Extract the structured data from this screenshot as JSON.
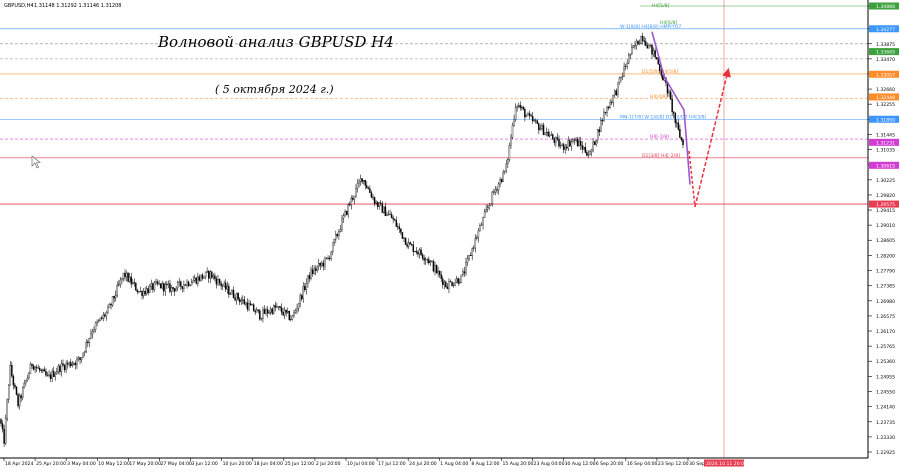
{
  "header": {
    "symbol": "GBPUSD,H4",
    "ohlc": "1.31148 1.31292 1.31146 1.31208"
  },
  "annotation": {
    "title": "Волновой анализ GBPUSD H4",
    "date": "( 5 октября 2024 г.)"
  },
  "colors": {
    "background": "#ffffff",
    "candles": "#000000",
    "grid": "#e6e6e6",
    "vline_red": "#f08080",
    "forecast": "#e8323c",
    "wave_purple": "#9b59d0",
    "murrey_blue": "#3c96ff",
    "murrey_orange": "#ff8c28",
    "murrey_red": "#e83c50",
    "murrey_magenta": "#d23cd2",
    "murrey_green": "#3ca03c",
    "murrey_gray": "#8c8c8c"
  },
  "chart_data": {
    "type": "candlestick",
    "symbol": "GBPUSD",
    "timeframe": "H4",
    "ylim": [
      1.22925,
      1.34888
    ],
    "y_ticks": [
      "1.34888",
      "1.34277",
      "1.33875",
      "1.33470",
      "1.33065",
      "1.32660",
      "1.32255",
      "1.31850",
      "1.31445",
      "1.31035",
      "1.30630",
      "1.30225",
      "1.29820",
      "1.29415",
      "1.29010",
      "1.28605",
      "1.28200",
      "1.27790",
      "1.27385",
      "1.26980",
      "1.26575",
      "1.26170",
      "1.25765",
      "1.25360",
      "1.24955",
      "1.24550",
      "1.24140",
      "1.23735",
      "1.23330",
      "1.22925"
    ],
    "x_ticks": [
      "18 Apr 2024",
      "25 Apr 20:00",
      "3 May 04:00",
      "10 May 12:00",
      "17 May 20:00",
      "27 May 04:00",
      "3 Jun 12:00",
      "10 Jun 20:00",
      "18 Jun 04:00",
      "25 Jun 12:00",
      "2 Jul 20:00",
      "10 Jul 04:00",
      "17 Jul 12:00",
      "24 Jul 20:00",
      "1 Aug 04:00",
      "8 Aug 12:00",
      "15 Aug 20:00",
      "23 Aug 04:00",
      "30 Aug 12:00",
      "6 Sep 20:00",
      "16 Sep 04:00",
      "23 Sep 12:00",
      "30 Sep 20:00"
    ],
    "x_highlight": "2024.10.11 20:00",
    "anchors": [
      [
        0,
        1.238
      ],
      [
        4,
        1.232
      ],
      [
        10,
        1.252
      ],
      [
        18,
        1.242
      ],
      [
        32,
        1.253
      ],
      [
        48,
        1.249
      ],
      [
        60,
        1.252
      ],
      [
        80,
        1.254
      ],
      [
        92,
        1.262
      ],
      [
        108,
        1.267
      ],
      [
        116,
        1.272
      ],
      [
        124,
        1.277
      ],
      [
        140,
        1.272
      ],
      [
        158,
        1.274
      ],
      [
        172,
        1.273
      ],
      [
        190,
        1.275
      ],
      [
        210,
        1.277
      ],
      [
        226,
        1.273
      ],
      [
        246,
        1.269
      ],
      [
        260,
        1.266
      ],
      [
        276,
        1.268
      ],
      [
        292,
        1.265
      ],
      [
        310,
        1.277
      ],
      [
        328,
        1.281
      ],
      [
        342,
        1.291
      ],
      [
        350,
        1.296
      ],
      [
        362,
        1.303
      ],
      [
        376,
        1.296
      ],
      [
        392,
        1.292
      ],
      [
        408,
        1.285
      ],
      [
        428,
        1.281
      ],
      [
        446,
        1.274
      ],
      [
        462,
        1.276
      ],
      [
        478,
        1.288
      ],
      [
        494,
        1.299
      ],
      [
        506,
        1.305
      ],
      [
        516,
        1.323
      ],
      [
        528,
        1.319
      ],
      [
        546,
        1.315
      ],
      [
        562,
        1.311
      ],
      [
        574,
        1.313
      ],
      [
        590,
        1.309
      ],
      [
        604,
        1.32
      ],
      [
        616,
        1.326
      ],
      [
        630,
        1.336
      ],
      [
        642,
        1.341
      ],
      [
        656,
        1.335
      ],
      [
        668,
        1.326
      ],
      [
        676,
        1.317
      ],
      [
        684,
        1.311
      ]
    ],
    "forecast_path": [
      [
        689,
        1.31
      ],
      [
        695,
        1.295
      ],
      [
        728,
        1.3315
      ]
    ],
    "wave_path": [
      [
        652,
        1.342
      ],
      [
        664,
        1.33
      ],
      [
        684,
        1.321
      ],
      [
        690,
        1.301
      ]
    ],
    "murrey_levels": [
      {
        "label": "",
        "value": 1.34888,
        "color": "#3ca03c"
      },
      {
        "label": "W-1[8/8] H4[8/8] HMPrYO7",
        "value": 1.34277,
        "color": "#3c96ff"
      },
      {
        "label": "",
        "value": 1.33875,
        "color": "#8c8c8c"
      },
      {
        "label": "",
        "value": 1.3347,
        "color": "#8c8c8c"
      },
      {
        "label": "D1[5/8] H4[5/8]",
        "value": 1.33065,
        "color": "#ff8c28"
      },
      {
        "label": "H4[4/8]",
        "value": 1.324,
        "color": "#ff8c28"
      },
      {
        "label": "MN-1[7/8] W-1[6/8] D1 P2/O7 H4[3/8]",
        "value": 1.3185,
        "color": "#3c96ff"
      },
      {
        "label": "H4[-1/8]",
        "value": 1.3132,
        "color": "#d23cd2"
      },
      {
        "label": "D1[3/8] H4[-2/8]",
        "value": 1.30815,
        "color": "#e83c50"
      },
      {
        "label": "",
        "value": 1.29575,
        "color": "#e83c50"
      }
    ],
    "price_tags": [
      "1.34888",
      "1.34277",
      "1.33665",
      "1.33057",
      "1.32449",
      "1.31850",
      "1.31231",
      "1.30615",
      "1.29575"
    ],
    "wave_labels": [
      "H4[5/8]",
      "H4[6/8]"
    ]
  }
}
